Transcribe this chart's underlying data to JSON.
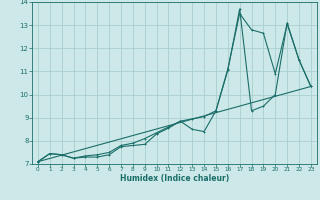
{
  "background_color": "#cde8e8",
  "grid_color": "#aacece",
  "line_color": "#1a6e6a",
  "xlabel": "Humidex (Indice chaleur)",
  "xlim": [
    -0.5,
    23.5
  ],
  "ylim": [
    7,
    14
  ],
  "xticks": [
    0,
    1,
    2,
    3,
    4,
    5,
    6,
    7,
    8,
    9,
    10,
    11,
    12,
    13,
    14,
    15,
    16,
    17,
    18,
    19,
    20,
    21,
    22,
    23
  ],
  "yticks": [
    7,
    8,
    9,
    10,
    11,
    12,
    13,
    14
  ],
  "line1_x": [
    0,
    1,
    2,
    3,
    4,
    5,
    6,
    7,
    8,
    9,
    10,
    11,
    12,
    13,
    14,
    15,
    16,
    17,
    18,
    19,
    20,
    21,
    22,
    23
  ],
  "line1_y": [
    7.1,
    7.45,
    7.4,
    7.25,
    7.3,
    7.3,
    7.4,
    7.75,
    7.8,
    7.85,
    8.3,
    8.55,
    8.85,
    8.5,
    8.4,
    9.3,
    11.05,
    13.7,
    9.3,
    9.5,
    10.0,
    13.1,
    11.5,
    10.35
  ],
  "line2_x": [
    0,
    1,
    2,
    3,
    4,
    5,
    6,
    7,
    8,
    9,
    10,
    11,
    12,
    13,
    14,
    15,
    16,
    17,
    18,
    19,
    20,
    21,
    22,
    23
  ],
  "line2_y": [
    7.1,
    7.45,
    7.4,
    7.25,
    7.35,
    7.4,
    7.5,
    7.8,
    7.9,
    8.1,
    8.35,
    8.6,
    8.85,
    8.95,
    9.05,
    9.3,
    11.1,
    13.5,
    12.8,
    12.65,
    10.9,
    13.05,
    11.5,
    10.35
  ],
  "line3_x": [
    0,
    23
  ],
  "line3_y": [
    7.1,
    10.35
  ]
}
